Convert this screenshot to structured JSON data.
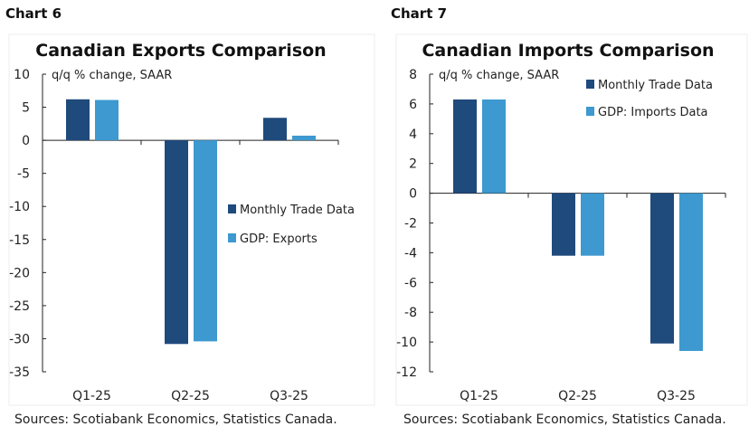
{
  "colors": {
    "monthly": "#1f4a7c",
    "gdp": "#3d99cf"
  },
  "chart_data": [
    {
      "label": "Chart 6",
      "type": "bar",
      "title": "Canadian Exports Comparison",
      "ylabel": "q/q % change, SAAR",
      "categories": [
        "Q1-25",
        "Q2-25",
        "Q3-25"
      ],
      "ylim": [
        -35,
        10
      ],
      "yticks": [
        10,
        5,
        0,
        -5,
        -10,
        -15,
        -20,
        -25,
        -30,
        -35
      ],
      "series": [
        {
          "name": "Monthly Trade Data",
          "values": [
            6.2,
            -30.8,
            3.4
          ]
        },
        {
          "name": "GDP: Exports",
          "values": [
            6.1,
            -30.4,
            0.7
          ]
        }
      ],
      "legend": "center-right",
      "grid": false,
      "source": "Sources: Scotiabank Economics, Statistics Canada."
    },
    {
      "label": "Chart 7",
      "type": "bar",
      "title": "Canadian Imports Comparison",
      "ylabel": "q/q % change, SAAR",
      "categories": [
        "Q1-25",
        "Q2-25",
        "Q3-25"
      ],
      "ylim": [
        -12,
        8
      ],
      "yticks": [
        8,
        6,
        4,
        2,
        0,
        -2,
        -4,
        -6,
        -8,
        -10,
        -12
      ],
      "series": [
        {
          "name": "Monthly Trade Data",
          "values": [
            6.3,
            -4.2,
            -10.1
          ]
        },
        {
          "name": "GDP: Imports Data",
          "values": [
            6.3,
            -4.2,
            -10.6
          ]
        }
      ],
      "legend": "top-right",
      "grid": false,
      "source": "Sources: Scotiabank Economics, Statistics Canada."
    }
  ]
}
